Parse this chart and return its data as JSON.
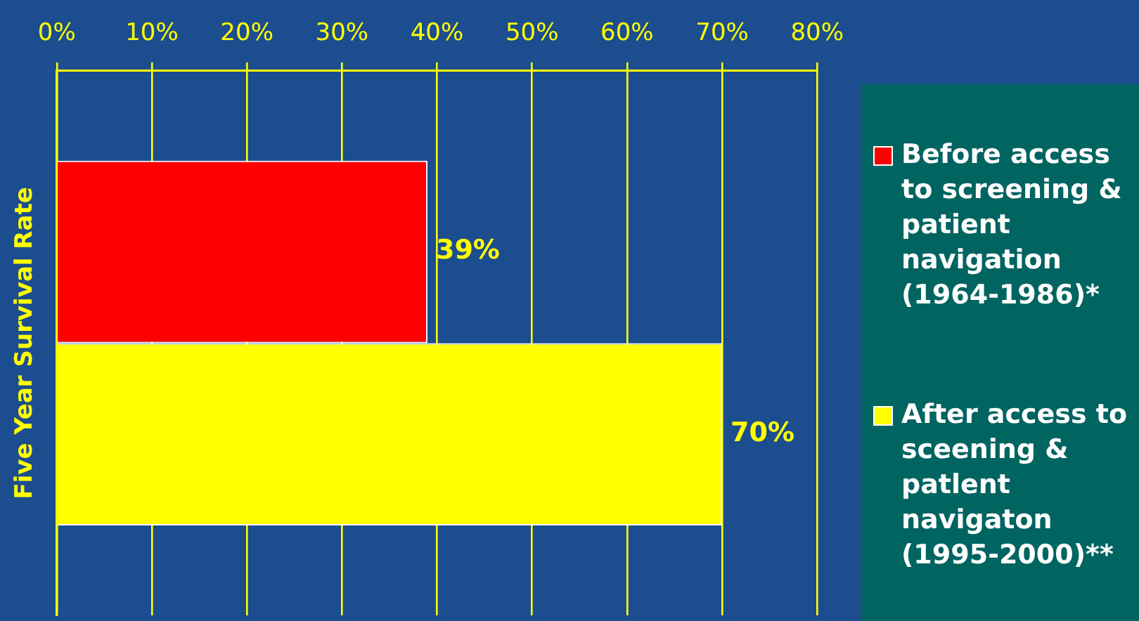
{
  "chart_data": {
    "type": "bar",
    "orientation": "horizontal",
    "ylabel": "Five Year Survival Rate",
    "categories": [
      null
    ],
    "series": [
      {
        "name": "Before access to screening & patient navigation (1964-1986)*",
        "color": "#ff0000",
        "values": [
          39
        ],
        "value_labels": [
          "39%"
        ]
      },
      {
        "name": "After access to sceening & patlent navigaton (1995-2000)**",
        "color": "#ffff00",
        "values": [
          70
        ],
        "value_labels": [
          "70%"
        ]
      }
    ],
    "xlim": [
      0,
      80
    ],
    "xticks": [
      {
        "value": 0,
        "label": "0%"
      },
      {
        "value": 10,
        "label": "10%"
      },
      {
        "value": 20,
        "label": "20%"
      },
      {
        "value": 30,
        "label": "30%"
      },
      {
        "value": 40,
        "label": "40%"
      },
      {
        "value": 50,
        "label": "50%"
      },
      {
        "value": 60,
        "label": "60%"
      },
      {
        "value": 70,
        "label": "70%"
      },
      {
        "value": 80,
        "label": "80%"
      }
    ],
    "grid": "x",
    "legend": "right"
  }
}
